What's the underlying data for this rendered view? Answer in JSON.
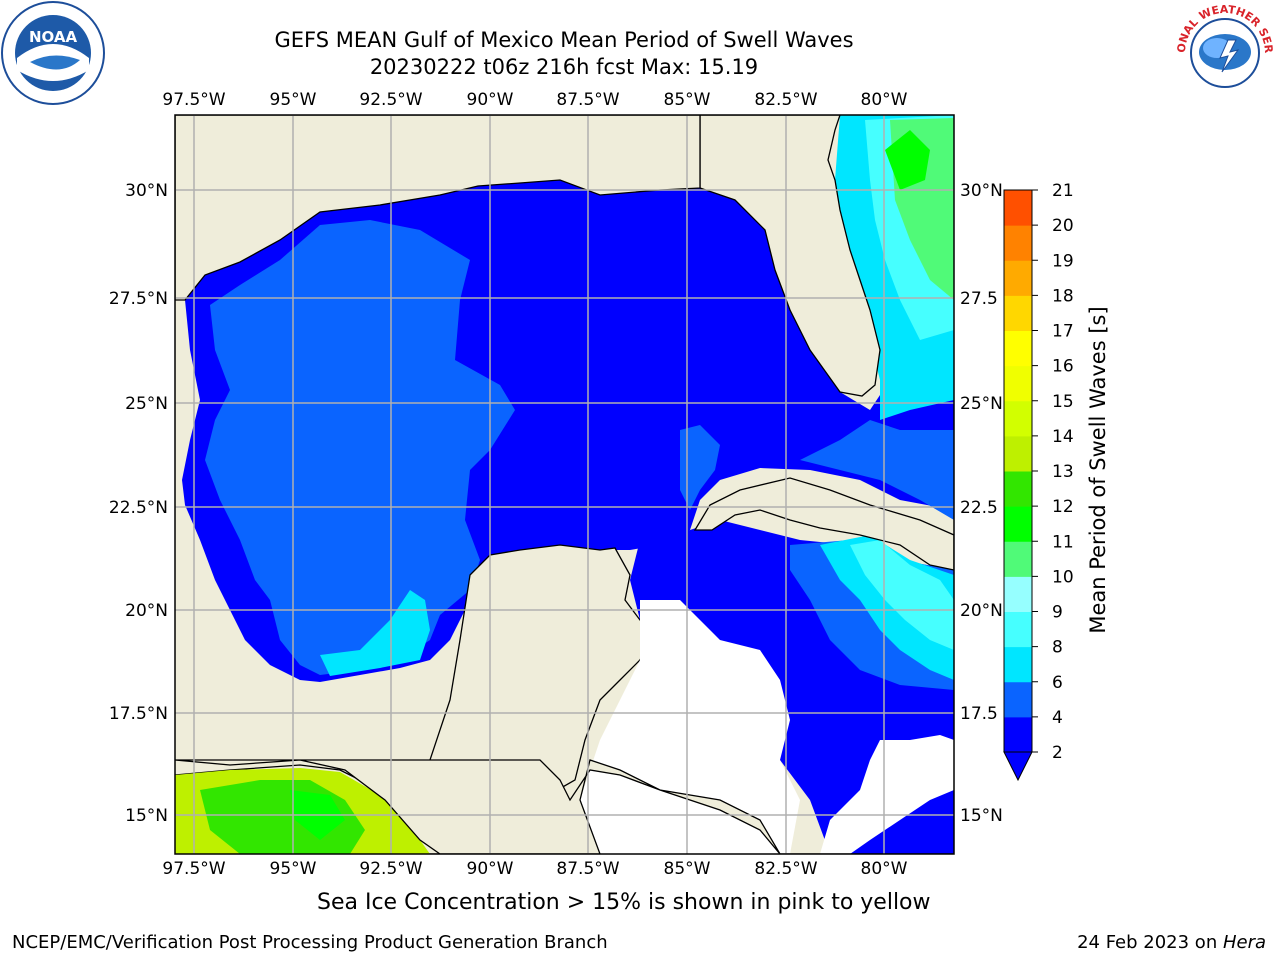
{
  "title": {
    "line1": "GEFS MEAN Gulf of Mexico Mean Period of Swell Waves",
    "line2": "20230222 t06z 216h fcst   Max: 15.19"
  },
  "logos": {
    "left": {
      "icon": "noaa-logo-icon",
      "text": "NOAA"
    },
    "right": {
      "icon": "nws-logo-icon",
      "text": "NATIONAL WEATHER SERVICE"
    }
  },
  "map": {
    "lon_ticks": [
      "97.5°W",
      "95°W",
      "92.5°W",
      "90°W",
      "87.5°W",
      "85°W",
      "82.5°W",
      "80°W"
    ],
    "lat_ticks_left": [
      "30°N",
      "27.5°N",
      "25°N",
      "22.5°N",
      "20°N",
      "17.5°N",
      "15°N"
    ],
    "lat_ticks_right": [
      "30°N",
      "27.5",
      "25°N",
      "22.5",
      "20°N",
      "17.5",
      "15°N"
    ],
    "colors": {
      "land": "#efedda",
      "grid": "#b0b0b0",
      "nodata": "#ffffff"
    }
  },
  "colorbar": {
    "label": "Mean Period of Swell Waves [s]",
    "ticks": [
      "2",
      "4",
      "6",
      "8",
      "9",
      "10",
      "11",
      "12",
      "13",
      "14",
      "15",
      "16",
      "17",
      "18",
      "19",
      "20",
      "21"
    ],
    "colors": [
      "#0000ff",
      "#0a64ff",
      "#00e6ff",
      "#46ffff",
      "#96ffff",
      "#50fa78",
      "#00ff00",
      "#32e600",
      "#bef000",
      "#d2ff00",
      "#f0ff00",
      "#ffff00",
      "#ffd700",
      "#ffaa00",
      "#ff8200",
      "#ff5000",
      "#ff0000"
    ]
  },
  "note": "Sea Ice Concentration > 15% is shown in pink to yellow",
  "footer": {
    "left": "NCEP/EMC/Verification Post Processing Product Generation Branch",
    "right_prefix": "24 Feb 2023 on ",
    "right_host": "Hera"
  }
}
